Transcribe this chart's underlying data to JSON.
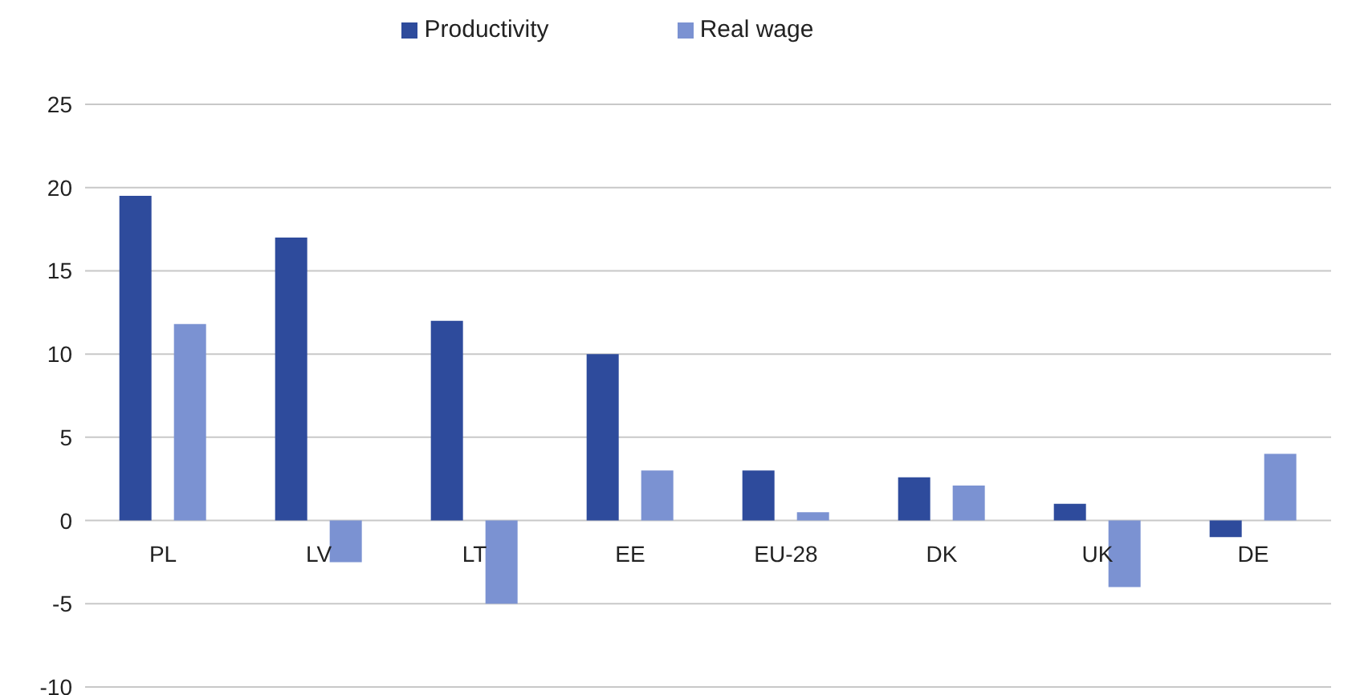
{
  "chart_data": {
    "type": "bar",
    "categories": [
      "PL",
      "LV",
      "LT",
      "EE",
      "EU-28",
      "DK",
      "UK",
      "DE"
    ],
    "series": [
      {
        "name": "Productivity",
        "color": "#2e4b9c",
        "values": [
          19.5,
          17,
          12,
          10,
          3,
          2.6,
          1,
          -1
        ]
      },
      {
        "name": "Real wage",
        "color": "#7b92d2",
        "values": [
          11.8,
          -2.5,
          -5,
          3,
          0.5,
          2.1,
          -4,
          4
        ]
      }
    ],
    "ylim": [
      -10,
      25
    ],
    "yticks": [
      -10,
      -5,
      0,
      5,
      10,
      15,
      20,
      25
    ],
    "grid": "y",
    "legend": "top"
  }
}
